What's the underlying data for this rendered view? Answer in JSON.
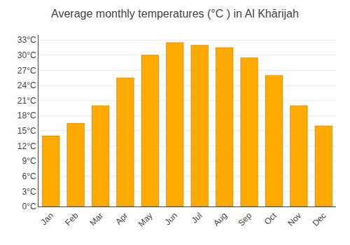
{
  "chart_data": {
    "type": "bar",
    "title": "Average monthly temperatures (°C ) in Al Khārijah",
    "categories": [
      "Jan",
      "Feb",
      "Mar",
      "Apr",
      "May",
      "Jun",
      "Jul",
      "Aug",
      "Sep",
      "Oct",
      "Nov",
      "Dec"
    ],
    "values": [
      14,
      16.5,
      20,
      25.5,
      30,
      32.5,
      32,
      31.5,
      29.5,
      26,
      20,
      16
    ],
    "color": "#FFAA00",
    "ylim": [
      0,
      34
    ],
    "yticks": [
      {
        "value": 0,
        "label": "0°C"
      },
      {
        "value": 3,
        "label": "3°C"
      },
      {
        "value": 6,
        "label": "6°C"
      },
      {
        "value": 9,
        "label": "9°C"
      },
      {
        "value": 12,
        "label": "12°C"
      },
      {
        "value": 15,
        "label": "15°C"
      },
      {
        "value": 18,
        "label": "18°C"
      },
      {
        "value": 21,
        "label": "21°C"
      },
      {
        "value": 24,
        "label": "24°C"
      },
      {
        "value": 27,
        "label": "27°C"
      },
      {
        "value": 30,
        "label": "30°C"
      },
      {
        "value": 33,
        "label": "33°C"
      }
    ],
    "grid": true
  }
}
